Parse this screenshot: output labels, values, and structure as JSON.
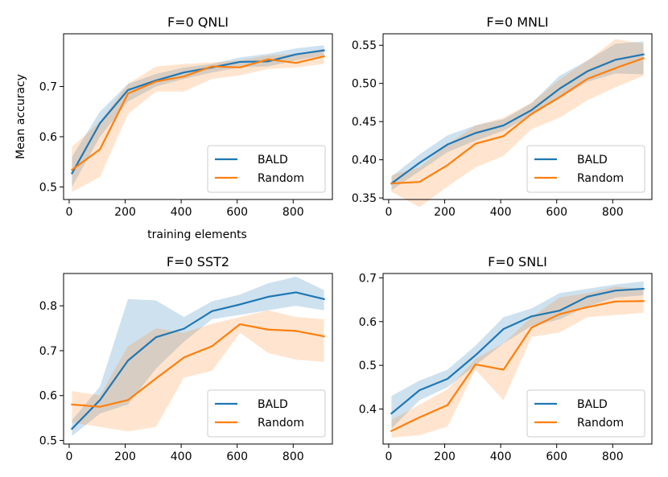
{
  "figure": {
    "ylabel": "Mean accuracy",
    "xlabel": "training elements"
  },
  "colors": {
    "BALD": "#1f77b4",
    "Random": "#ff7f0e",
    "BALD_band": "#1f77b4",
    "Random_band": "#ff7f0e"
  },
  "chart_data": [
    {
      "type": "line",
      "title": "F=0 QNLI",
      "x": [
        10,
        110,
        210,
        310,
        410,
        510,
        610,
        710,
        810,
        910
      ],
      "xlim": [
        -20,
        940
      ],
      "ylim": [
        0.475,
        0.805
      ],
      "xticks": [
        0,
        200,
        400,
        600,
        800
      ],
      "yticks": [
        0.5,
        0.6,
        0.7
      ],
      "ytick_labels": [
        "0.5",
        "0.6",
        "0.7"
      ],
      "legend": "lower-right",
      "series": [
        {
          "name": "BALD",
          "values": [
            0.527,
            0.627,
            0.693,
            0.712,
            0.728,
            0.738,
            0.749,
            0.75,
            0.764,
            0.772
          ],
          "lower": [
            0.5,
            0.6,
            0.67,
            0.7,
            0.715,
            0.728,
            0.738,
            0.74,
            0.752,
            0.762
          ],
          "upper": [
            0.56,
            0.65,
            0.705,
            0.725,
            0.738,
            0.745,
            0.758,
            0.765,
            0.776,
            0.782
          ]
        },
        {
          "name": "Random",
          "values": [
            0.534,
            0.575,
            0.686,
            0.71,
            0.72,
            0.74,
            0.738,
            0.754,
            0.747,
            0.76
          ],
          "lower": [
            0.49,
            0.52,
            0.645,
            0.69,
            0.69,
            0.715,
            0.722,
            0.735,
            0.738,
            0.745
          ],
          "upper": [
            0.58,
            0.63,
            0.705,
            0.74,
            0.745,
            0.748,
            0.752,
            0.762,
            0.765,
            0.775
          ]
        }
      ]
    },
    {
      "type": "line",
      "title": "F=0 MNLI",
      "x": [
        10,
        110,
        210,
        310,
        410,
        510,
        610,
        710,
        810,
        910
      ],
      "xlim": [
        -20,
        940
      ],
      "ylim": [
        0.348,
        0.565
      ],
      "xticks": [
        0,
        200,
        400,
        600,
        800
      ],
      "yticks": [
        0.35,
        0.4,
        0.45,
        0.5,
        0.55
      ],
      "ytick_labels": [
        "0.35",
        "0.40",
        "0.45",
        "0.50",
        "0.55"
      ],
      "legend": "lower-right",
      "series": [
        {
          "name": "BALD",
          "values": [
            0.369,
            0.396,
            0.42,
            0.435,
            0.445,
            0.465,
            0.493,
            0.516,
            0.531,
            0.538
          ],
          "lower": [
            0.36,
            0.385,
            0.41,
            0.425,
            0.438,
            0.458,
            0.48,
            0.502,
            0.513,
            0.512
          ],
          "upper": [
            0.378,
            0.407,
            0.432,
            0.445,
            0.453,
            0.474,
            0.51,
            0.53,
            0.552,
            0.555
          ]
        },
        {
          "name": "Random",
          "values": [
            0.369,
            0.371,
            0.393,
            0.421,
            0.431,
            0.46,
            0.482,
            0.506,
            0.52,
            0.533
          ],
          "lower": [
            0.358,
            0.338,
            0.365,
            0.39,
            0.405,
            0.44,
            0.455,
            0.478,
            0.495,
            0.51
          ],
          "upper": [
            0.38,
            0.39,
            0.42,
            0.445,
            0.455,
            0.475,
            0.505,
            0.53,
            0.558,
            0.552
          ]
        }
      ]
    },
    {
      "type": "line",
      "title": "F=0 SST2",
      "x": [
        10,
        110,
        210,
        310,
        410,
        510,
        610,
        710,
        810,
        910
      ],
      "xlim": [
        -20,
        940
      ],
      "ylim": [
        0.492,
        0.872
      ],
      "xticks": [
        0,
        200,
        400,
        600,
        800
      ],
      "yticks": [
        0.5,
        0.6,
        0.7,
        0.8
      ],
      "ytick_labels": [
        "0.5",
        "0.6",
        "0.7",
        "0.8"
      ],
      "legend": "lower-right",
      "series": [
        {
          "name": "BALD",
          "values": [
            0.526,
            0.59,
            0.678,
            0.73,
            0.749,
            0.788,
            0.803,
            0.82,
            0.83,
            0.815
          ],
          "lower": [
            0.51,
            0.56,
            0.58,
            0.66,
            0.72,
            0.77,
            0.78,
            0.79,
            0.8,
            0.79
          ],
          "upper": [
            0.545,
            0.62,
            0.815,
            0.812,
            0.775,
            0.81,
            0.825,
            0.85,
            0.865,
            0.835
          ]
        },
        {
          "name": "Random",
          "values": [
            0.58,
            0.575,
            0.59,
            0.638,
            0.685,
            0.71,
            0.759,
            0.747,
            0.744,
            0.732
          ],
          "lower": [
            0.54,
            0.53,
            0.52,
            0.53,
            0.64,
            0.655,
            0.74,
            0.695,
            0.68,
            0.675
          ],
          "upper": [
            0.61,
            0.6,
            0.71,
            0.75,
            0.74,
            0.76,
            0.775,
            0.79,
            0.775,
            0.77
          ]
        }
      ]
    },
    {
      "type": "line",
      "title": "F=0 SNLI",
      "x": [
        10,
        110,
        210,
        310,
        410,
        510,
        610,
        710,
        810,
        910
      ],
      "xlim": [
        -20,
        940
      ],
      "ylim": [
        0.32,
        0.71
      ],
      "xticks": [
        0,
        200,
        400,
        600,
        800
      ],
      "yticks": [
        0.4,
        0.5,
        0.6,
        0.7
      ],
      "ytick_labels": [
        "0.4",
        "0.5",
        "0.6",
        "0.7"
      ],
      "legend": "lower-right",
      "series": [
        {
          "name": "BALD",
          "values": [
            0.39,
            0.443,
            0.469,
            0.523,
            0.583,
            0.612,
            0.625,
            0.657,
            0.671,
            0.675
          ],
          "lower": [
            0.355,
            0.42,
            0.45,
            0.5,
            0.55,
            0.59,
            0.605,
            0.635,
            0.655,
            0.66
          ],
          "upper": [
            0.43,
            0.465,
            0.49,
            0.545,
            0.61,
            0.63,
            0.665,
            0.675,
            0.685,
            0.692
          ]
        },
        {
          "name": "Random",
          "values": [
            0.35,
            0.381,
            0.409,
            0.502,
            0.49,
            0.586,
            0.617,
            0.633,
            0.646,
            0.647
          ],
          "lower": [
            0.335,
            0.34,
            0.36,
            0.49,
            0.42,
            0.565,
            0.575,
            0.61,
            0.615,
            0.62
          ],
          "upper": [
            0.375,
            0.41,
            0.445,
            0.515,
            0.55,
            0.61,
            0.655,
            0.665,
            0.68,
            0.675
          ]
        }
      ]
    }
  ]
}
